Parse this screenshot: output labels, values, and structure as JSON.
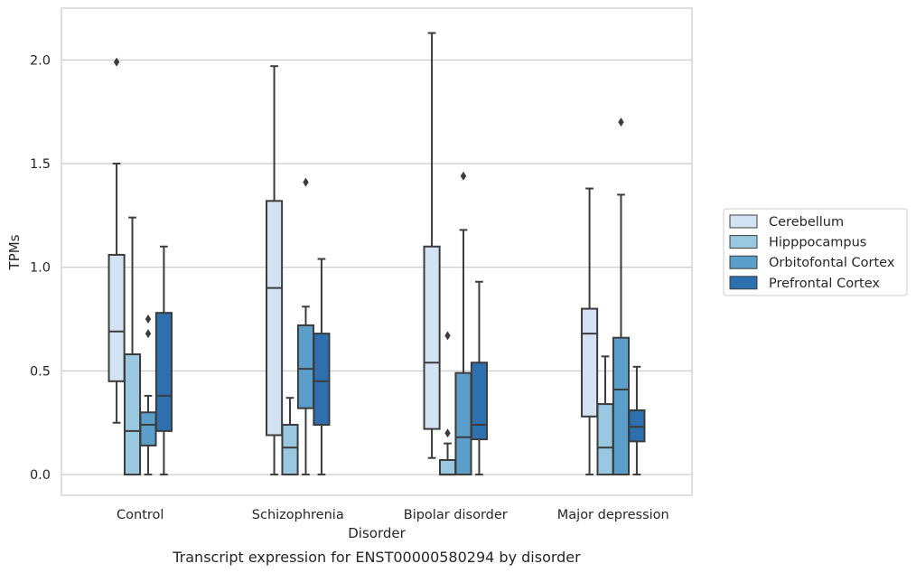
{
  "chart_data": {
    "type": "box",
    "xlabel": "Disorder",
    "ylabel": "TPMs",
    "caption": "Transcript expression for ENST00000580294 by disorder",
    "categories": [
      "Control",
      "Schizophrenia",
      "Bipolar disorder",
      "Major depression"
    ],
    "ylim": [
      -0.1,
      2.25
    ],
    "yticks": [
      0.0,
      0.5,
      1.0,
      1.5,
      2.0
    ],
    "ytick_labels": [
      "0.0",
      "0.5",
      "1.0",
      "1.5",
      "2.0"
    ],
    "grid": "horizontal",
    "legend_position": "right",
    "series": [
      {
        "name": "Cerebellum",
        "color": "#d3e3f3",
        "boxes": [
          {
            "whislo": 0.25,
            "q1": 0.45,
            "med": 0.69,
            "q3": 1.06,
            "whishi": 1.5,
            "fliers": [
              1.99
            ]
          },
          {
            "whislo": 0.0,
            "q1": 0.19,
            "med": 0.9,
            "q3": 1.32,
            "whishi": 1.97,
            "fliers": []
          },
          {
            "whislo": 0.08,
            "q1": 0.22,
            "med": 0.54,
            "q3": 1.1,
            "whishi": 2.13,
            "fliers": []
          },
          {
            "whislo": 0.0,
            "q1": 0.28,
            "med": 0.68,
            "q3": 0.8,
            "whishi": 1.38,
            "fliers": []
          }
        ]
      },
      {
        "name": "Hipppocampus",
        "color": "#9ac8e0",
        "boxes": [
          {
            "whislo": 0.0,
            "q1": 0.0,
            "med": 0.21,
            "q3": 0.58,
            "whishi": 1.24,
            "fliers": []
          },
          {
            "whislo": 0.0,
            "q1": 0.0,
            "med": 0.13,
            "q3": 0.24,
            "whishi": 0.37,
            "fliers": []
          },
          {
            "whislo": 0.0,
            "q1": 0.0,
            "med": 0.0,
            "q3": 0.07,
            "whishi": 0.15,
            "fliers": [
              0.2,
              0.67
            ]
          },
          {
            "whislo": 0.0,
            "q1": 0.0,
            "med": 0.13,
            "q3": 0.34,
            "whishi": 0.57,
            "fliers": []
          }
        ]
      },
      {
        "name": "Orbitofontal Cortex",
        "color": "#5a9ec9",
        "boxes": [
          {
            "whislo": 0.0,
            "q1": 0.14,
            "med": 0.24,
            "q3": 0.3,
            "whishi": 0.38,
            "fliers": [
              0.68,
              0.75
            ]
          },
          {
            "whislo": 0.0,
            "q1": 0.32,
            "med": 0.51,
            "q3": 0.72,
            "whishi": 0.81,
            "fliers": [
              1.41
            ]
          },
          {
            "whislo": 0.0,
            "q1": 0.0,
            "med": 0.18,
            "q3": 0.49,
            "whishi": 1.18,
            "fliers": [
              1.44
            ]
          },
          {
            "whislo": 0.0,
            "q1": 0.0,
            "med": 0.41,
            "q3": 0.66,
            "whishi": 1.35,
            "fliers": [
              1.7
            ]
          }
        ]
      },
      {
        "name": "Prefrontal Cortex",
        "color": "#2d6faf",
        "boxes": [
          {
            "whislo": 0.0,
            "q1": 0.21,
            "med": 0.38,
            "q3": 0.78,
            "whishi": 1.1,
            "fliers": []
          },
          {
            "whislo": 0.0,
            "q1": 0.24,
            "med": 0.45,
            "q3": 0.68,
            "whishi": 1.04,
            "fliers": []
          },
          {
            "whislo": 0.0,
            "q1": 0.17,
            "med": 0.24,
            "q3": 0.54,
            "whishi": 0.93,
            "fliers": []
          },
          {
            "whislo": 0.0,
            "q1": 0.16,
            "med": 0.23,
            "q3": 0.31,
            "whishi": 0.52,
            "fliers": []
          }
        ]
      }
    ]
  }
}
